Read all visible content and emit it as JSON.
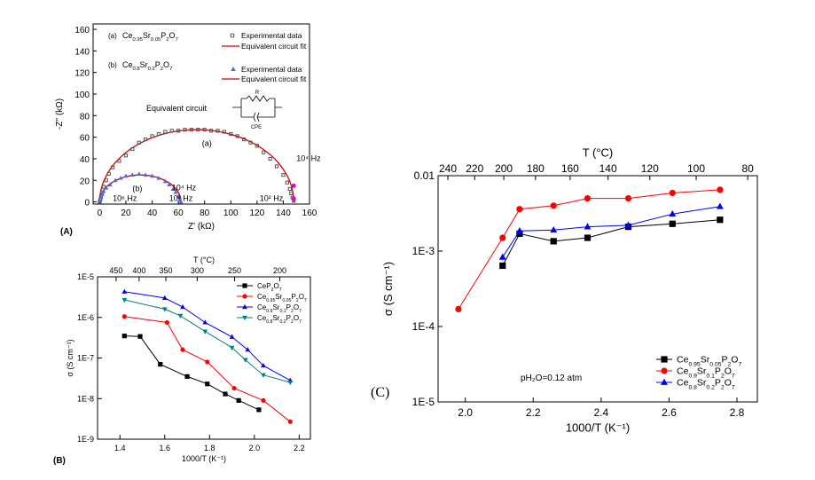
{
  "chart_data": [
    {
      "panel": "(A)",
      "type": "scatter",
      "xlabel": "Z' (kΩ)",
      "ylabel": "-Z'' (kΩ)",
      "xlim": [
        -5,
        160
      ],
      "ylim": [
        -2,
        165
      ],
      "xticks": [
        0,
        20,
        40,
        60,
        80,
        100,
        120,
        140,
        160
      ],
      "yticks": [
        0,
        20,
        40,
        60,
        80,
        100,
        120,
        140,
        160
      ],
      "legend": [
        {
          "prefix": "(a)",
          "label": "Ce0.95Sr0.05P2O7",
          "entries": [
            "Experimental data",
            "Equivalent circuit fit"
          ]
        },
        {
          "prefix": "(b)",
          "label": "Ce0.8Sr0.2P2O7",
          "entries": [
            "Experimental data",
            "Equivalent circuit fit"
          ]
        }
      ],
      "inset_label": "Equivalent circuit",
      "inset_r": "R",
      "inset_cpe": "CPE",
      "curve_labels": {
        "a": "(a)",
        "b": "(b)"
      },
      "freq_labels": [
        "10⁴ Hz",
        "10² Hz",
        "10⁶ Hz",
        "10⁴ Hz",
        "10² Hz"
      ],
      "series": [
        {
          "name": "Ce0.95Sr0.05P2O7",
          "fit_center": 74,
          "fit_radius": 74,
          "fit_ymax": 67,
          "points": [
            [
              0,
              0
            ],
            [
              0.5,
              2
            ],
            [
              1,
              5
            ],
            [
              2,
              9
            ],
            [
              3,
              14
            ],
            [
              5,
              20
            ],
            [
              7,
              26
            ],
            [
              10,
              32
            ],
            [
              15,
              38
            ],
            [
              20,
              43
            ],
            [
              25,
              49
            ],
            [
              30,
              55
            ],
            [
              35,
              58
            ],
            [
              40,
              61
            ],
            [
              45,
              63
            ],
            [
              50,
              65
            ],
            [
              55,
              66
            ],
            [
              60,
              66
            ],
            [
              65,
              67
            ],
            [
              70,
              67
            ],
            [
              75,
              67
            ],
            [
              80,
              67
            ],
            [
              85,
              66
            ],
            [
              90,
              66
            ],
            [
              95,
              65
            ],
            [
              100,
              63
            ],
            [
              105,
              61
            ],
            [
              110,
              58
            ],
            [
              115,
              55
            ],
            [
              120,
              52
            ],
            [
              125,
              46
            ],
            [
              130,
              40
            ],
            [
              135,
              33
            ],
            [
              140,
              25
            ],
            [
              143,
              18
            ],
            [
              145,
              12
            ],
            [
              146,
              8
            ],
            [
              147,
              4
            ],
            [
              148,
              1
            ]
          ]
        },
        {
          "name": "Ce0.8Sr0.2P2O7",
          "fit_center": 31,
          "fit_radius": 31,
          "fit_ymax": 25,
          "points": [
            [
              0,
              1
            ],
            [
              1,
              4
            ],
            [
              2,
              7
            ],
            [
              3,
              10
            ],
            [
              5,
              13
            ],
            [
              8,
              16
            ],
            [
              12,
              20
            ],
            [
              16,
              22
            ],
            [
              20,
              24
            ],
            [
              25,
              25
            ],
            [
              30,
              26
            ],
            [
              35,
              25
            ],
            [
              40,
              24
            ],
            [
              45,
              22
            ],
            [
              50,
              19
            ],
            [
              53,
              16
            ],
            [
              56,
              12
            ],
            [
              58,
              9
            ],
            [
              60,
              5
            ],
            [
              61,
              2
            ],
            [
              62,
              0
            ]
          ]
        }
      ]
    },
    {
      "panel": "(B)",
      "type": "line",
      "xlabel": "1000/T (K⁻¹)",
      "ylabel": "σ (S cm⁻¹)",
      "top_xlabel": "T (°C)",
      "top_xticks": [
        "450",
        "400",
        "350",
        "300",
        "250",
        "200"
      ],
      "xticks": [
        "1.4",
        "1.6",
        "1.8",
        "2.0",
        "2.2"
      ],
      "yticks": [
        "1E-9",
        "1E-8",
        "1E-7",
        "1E-6",
        "1E-5"
      ],
      "xlim": [
        1.3,
        2.25
      ],
      "ylim_log": [
        -9,
        -5
      ],
      "series": [
        {
          "name": "CeP2O7",
          "color": "#000000",
          "marker": "square",
          "x": [
            1.42,
            1.49,
            1.58,
            1.7,
            1.79,
            1.87,
            1.93,
            2.02
          ],
          "y": [
            3.5e-07,
            3.4e-07,
            7e-08,
            3.5e-08,
            2.3e-08,
            1.3e-08,
            9e-09,
            5.3e-09
          ]
        },
        {
          "name": "Ce0.95Sr0.05P2O7",
          "color": "#ff0000",
          "marker": "circle",
          "x": [
            1.42,
            1.61,
            1.68,
            1.79,
            1.91,
            2.04,
            2.16
          ],
          "y": [
            1.05e-06,
            7.5e-07,
            1.6e-07,
            8e-08,
            1.8e-08,
            9e-09,
            2.7e-09
          ]
        },
        {
          "name": "Ce0.9Sr0.1P2O7",
          "color": "#0000ff",
          "marker": "triangle-up",
          "x": [
            1.42,
            1.6,
            1.68,
            1.78,
            1.9,
            1.97,
            2.04,
            2.16
          ],
          "y": [
            4.3e-06,
            3e-06,
            1.8e-06,
            7.5e-07,
            3.3e-07,
            1.6e-07,
            6.5e-08,
            2.8e-08
          ]
        },
        {
          "name": "Ce0.8Sr0.2P2O7",
          "color": "#008080",
          "marker": "triangle-down",
          "x": [
            1.42,
            1.6,
            1.67,
            1.78,
            1.9,
            1.96,
            2.04,
            2.16
          ],
          "y": [
            2.7e-06,
            1.6e-06,
            1.1e-06,
            4.5e-07,
            1.8e-07,
            9e-08,
            3.8e-08,
            2.5e-08
          ]
        }
      ]
    },
    {
      "panel": "(C)",
      "type": "line",
      "xlabel": "1000/T (K⁻¹)",
      "ylabel": "σ (S cm⁻¹)",
      "top_xlabel": "T (°C)",
      "top_xticks": [
        "240",
        "220",
        "200",
        "180",
        "160",
        "140",
        "120",
        "100",
        "80"
      ],
      "xticks": [
        "2.0",
        "2.2",
        "2.4",
        "2.6",
        "2.8"
      ],
      "yticks": [
        "1E-5",
        "1E-4",
        "1E-3",
        "0.01"
      ],
      "xlim": [
        1.92,
        2.86
      ],
      "ylim_log": [
        -5,
        -2
      ],
      "annotation": "pH₂O=0.12 atm",
      "series": [
        {
          "name": "Ce0.95Sr0.05P2O7",
          "color": "#000000",
          "marker": "square",
          "x": [
            2.11,
            2.16,
            2.26,
            2.36,
            2.48,
            2.61,
            2.75
          ],
          "y": [
            0.00064,
            0.0017,
            0.00135,
            0.0015,
            0.0021,
            0.0023,
            0.0026
          ]
        },
        {
          "name": "Ce0.9Sr0.1P2O7",
          "color": "#ff0000",
          "marker": "circle",
          "x": [
            1.98,
            2.11,
            2.16,
            2.26,
            2.36,
            2.48,
            2.61,
            2.75
          ],
          "y": [
            0.00017,
            0.0015,
            0.0036,
            0.004,
            0.005,
            0.005,
            0.0059,
            0.0065
          ]
        },
        {
          "name": "Ce0.8Sr0.2P2O7",
          "color": "#0000ff",
          "marker": "triangle-up",
          "x": [
            2.11,
            2.16,
            2.26,
            2.36,
            2.48,
            2.61,
            2.75
          ],
          "y": [
            0.00083,
            0.00185,
            0.0019,
            0.0021,
            0.0022,
            0.0031,
            0.0039
          ]
        }
      ]
    }
  ],
  "panel_labels": {
    "a": "(A)",
    "b": "(B)",
    "c": "(C)"
  }
}
